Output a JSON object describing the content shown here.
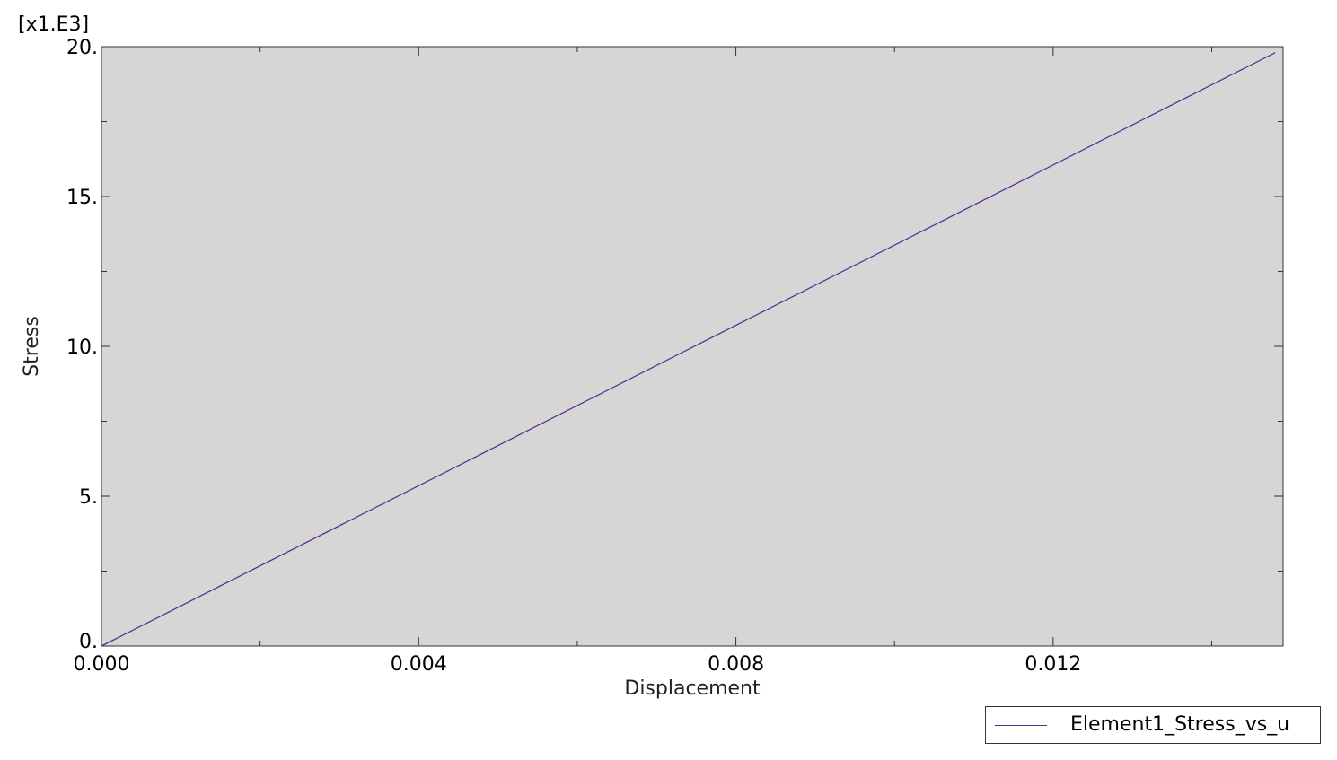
{
  "chart_data": {
    "type": "line",
    "title": "",
    "xlabel": "Displacement",
    "ylabel": "Stress",
    "y_multiplier_label": "[x1.E3]",
    "xlim": [
      0.0,
      0.0149
    ],
    "ylim": [
      0.0,
      20.0
    ],
    "x_ticks": [
      0.0,
      0.004,
      0.008,
      0.012
    ],
    "x_tick_labels": [
      "0.000",
      "0.004",
      "0.008",
      "0.012"
    ],
    "y_ticks": [
      0,
      5,
      10,
      15,
      20
    ],
    "y_tick_labels": [
      "0.",
      "5.",
      "10.",
      "15.",
      "20."
    ],
    "grid": false,
    "plot_background": "#d6d6d6",
    "legend_position": "bottom-right",
    "series": [
      {
        "name": "Element1_Stress_vs_u",
        "color": "#5b2d91",
        "x": [
          0.0,
          0.0148
        ],
        "y": [
          0.0,
          19.8
        ]
      }
    ]
  }
}
